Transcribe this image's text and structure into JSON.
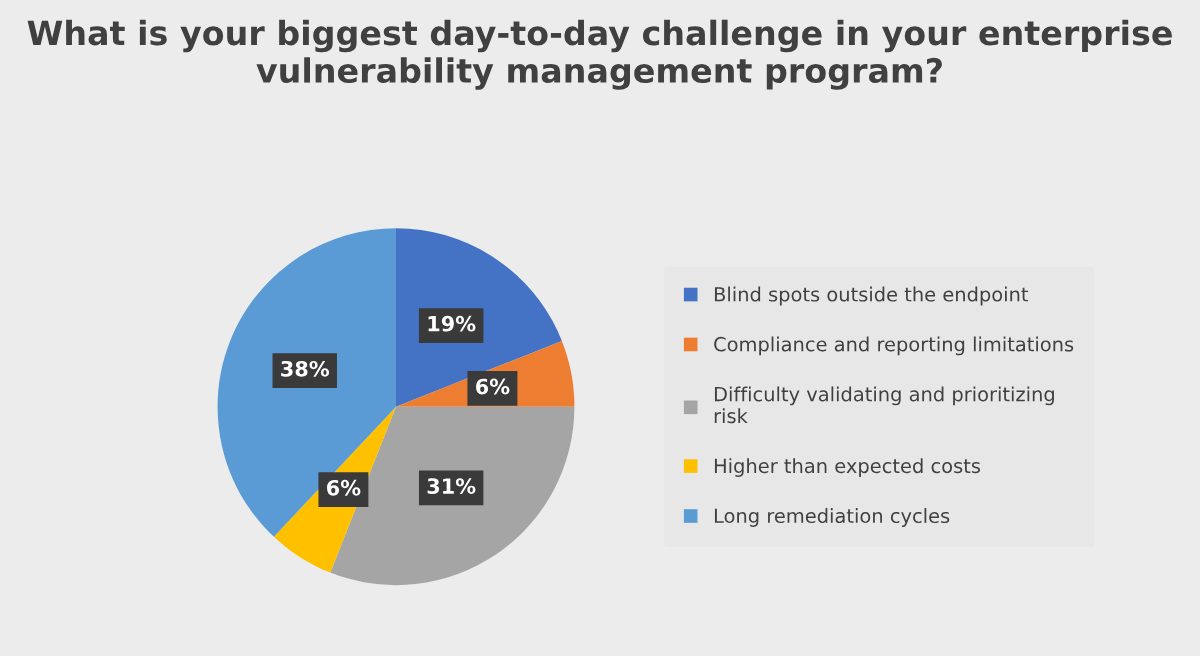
{
  "chart_data": {
    "type": "pie",
    "title": "What is your biggest day-to-day challenge in your enterprise vulnerability management program?",
    "categories": [
      "Blind spots outside the endpoint",
      "Compliance and reporting limitations",
      "Difficulty validating and prioritizing risk",
      "Higher than expected costs",
      "Long remediation cycles"
    ],
    "values": [
      19,
      6,
      31,
      6,
      38
    ],
    "colors": [
      "#4472c4",
      "#ed7d31",
      "#a5a5a5",
      "#ffc000",
      "#5b9bd5"
    ],
    "value_labels": [
      "19%",
      "6%",
      "31%",
      "6%",
      "38%"
    ],
    "legend": "right"
  }
}
